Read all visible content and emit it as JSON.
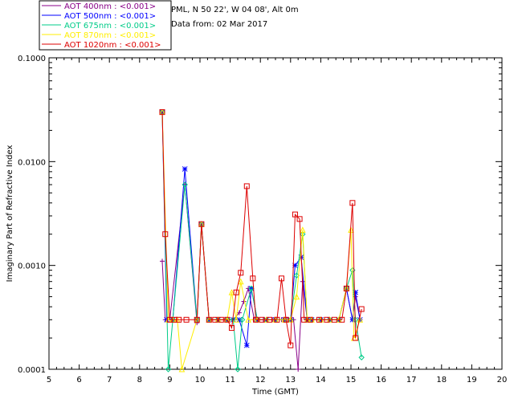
{
  "header": {
    "site": "PML, N 50 22', W 04 08', Alt 0m",
    "date_line": "Data from: 02 Mar 2017"
  },
  "colors": {
    "axis": "#000000",
    "series": [
      "#880088",
      "#0000ff",
      "#00cc88",
      "#ffee00",
      "#dd0000"
    ]
  },
  "chart_data": {
    "type": "line",
    "xlabel": "Time (GMT)",
    "ylabel": "Imaginary Part of Refractive Index",
    "xlim": [
      5,
      20
    ],
    "ylim": [
      0.0001,
      0.1
    ],
    "y_scale": "log",
    "x_ticks": [
      "5",
      "6",
      "7",
      "8",
      "9",
      "10",
      "11",
      "12",
      "13",
      "14",
      "15",
      "16",
      "17",
      "18",
      "19",
      "20"
    ],
    "y_ticks": [
      "0.0001",
      "0.0010",
      "0.0100",
      "0.1000"
    ],
    "y_tick_values": [
      0.0001,
      0.001,
      0.01,
      0.1
    ],
    "legend_position": "top-left, outside plot",
    "series": [
      {
        "name": "AOT  400nm : <0.001>",
        "marker": "plus",
        "points": [
          [
            8.75,
            0.0011
          ],
          [
            8.85,
            0.0003
          ],
          [
            9.0,
            0.0003
          ],
          [
            9.5,
            0.006
          ],
          [
            9.9,
            0.00028
          ],
          [
            10.05,
            0.0025
          ],
          [
            10.3,
            0.0003
          ],
          [
            10.6,
            0.0003
          ],
          [
            10.9,
            0.0003
          ],
          [
            11.1,
            0.0003
          ],
          [
            11.3,
            0.00035
          ],
          [
            11.45,
            0.00045
          ],
          [
            11.6,
            0.0006
          ],
          [
            11.8,
            0.0003
          ],
          [
            12.1,
            0.0003
          ],
          [
            12.4,
            0.0003
          ],
          [
            12.7,
            0.0003
          ],
          [
            12.9,
            0.0003
          ],
          [
            13.1,
            0.0003
          ],
          [
            13.25,
            0.0001
          ],
          [
            13.4,
            0.0007
          ],
          [
            13.55,
            0.0003
          ],
          [
            13.7,
            0.0003
          ],
          [
            14.0,
            0.0003
          ],
          [
            14.3,
            0.0003
          ],
          [
            14.6,
            0.0003
          ],
          [
            14.85,
            0.0006
          ],
          [
            15.05,
            0.0003
          ],
          [
            15.15,
            0.0005
          ],
          [
            15.3,
            0.0003
          ]
        ]
      },
      {
        "name": "AOT  500nm : <0.001>",
        "marker": "asterisk",
        "points": [
          [
            8.75,
            0.03
          ],
          [
            8.9,
            0.0003
          ],
          [
            9.1,
            0.0003
          ],
          [
            9.5,
            0.0085
          ],
          [
            9.9,
            0.0003
          ],
          [
            10.05,
            0.0025
          ],
          [
            10.3,
            0.0003
          ],
          [
            10.6,
            0.0003
          ],
          [
            10.9,
            0.0003
          ],
          [
            11.1,
            0.0003
          ],
          [
            11.3,
            0.0003
          ],
          [
            11.55,
            0.00017
          ],
          [
            11.7,
            0.0006
          ],
          [
            11.9,
            0.0003
          ],
          [
            12.2,
            0.0003
          ],
          [
            12.5,
            0.0003
          ],
          [
            12.8,
            0.0003
          ],
          [
            13.0,
            0.0003
          ],
          [
            13.15,
            0.001
          ],
          [
            13.35,
            0.0012
          ],
          [
            13.55,
            0.0003
          ],
          [
            13.7,
            0.0003
          ],
          [
            14.0,
            0.0003
          ],
          [
            14.3,
            0.0003
          ],
          [
            14.6,
            0.0003
          ],
          [
            14.85,
            0.0006
          ],
          [
            15.05,
            0.0003
          ],
          [
            15.15,
            0.00055
          ],
          [
            15.3,
            0.0003
          ]
        ]
      },
      {
        "name": "AOT  675nm : <0.001>",
        "marker": "diamond",
        "points": [
          [
            8.75,
            0.03
          ],
          [
            8.95,
            0.0001
          ],
          [
            9.1,
            0.0003
          ],
          [
            9.5,
            0.006
          ],
          [
            9.9,
            0.0003
          ],
          [
            10.05,
            0.0025
          ],
          [
            10.3,
            0.0003
          ],
          [
            10.6,
            0.0003
          ],
          [
            10.9,
            0.0003
          ],
          [
            11.1,
            0.0003
          ],
          [
            11.25,
            0.0001
          ],
          [
            11.4,
            0.0003
          ],
          [
            11.7,
            0.0006
          ],
          [
            11.9,
            0.0003
          ],
          [
            12.2,
            0.0003
          ],
          [
            12.5,
            0.0003
          ],
          [
            12.8,
            0.0003
          ],
          [
            13.0,
            0.0003
          ],
          [
            13.2,
            0.0008
          ],
          [
            13.4,
            0.002
          ],
          [
            13.55,
            0.0003
          ],
          [
            13.7,
            0.0003
          ],
          [
            14.0,
            0.0003
          ],
          [
            14.3,
            0.0003
          ],
          [
            14.6,
            0.0003
          ],
          [
            14.85,
            0.0006
          ],
          [
            15.05,
            0.0009
          ],
          [
            15.15,
            0.0003
          ],
          [
            15.35,
            0.00013
          ]
        ]
      },
      {
        "name": "AOT  870nm : <0.001>",
        "marker": "triangle",
        "points": [
          [
            8.75,
            0.03
          ],
          [
            8.95,
            0.0003
          ],
          [
            9.1,
            0.0003
          ],
          [
            9.25,
            0.0003
          ],
          [
            9.4,
            0.0001
          ],
          [
            9.9,
            0.0003
          ],
          [
            10.05,
            0.0025
          ],
          [
            10.3,
            0.0003
          ],
          [
            10.6,
            0.0003
          ],
          [
            10.9,
            0.0003
          ],
          [
            11.05,
            0.00055
          ],
          [
            11.2,
            0.0003
          ],
          [
            11.35,
            0.0007
          ],
          [
            11.6,
            0.0003
          ],
          [
            11.9,
            0.0003
          ],
          [
            12.2,
            0.0003
          ],
          [
            12.5,
            0.0003
          ],
          [
            12.8,
            0.0003
          ],
          [
            13.0,
            0.0003
          ],
          [
            13.2,
            0.0005
          ],
          [
            13.4,
            0.0022
          ],
          [
            13.55,
            0.0003
          ],
          [
            13.7,
            0.0003
          ],
          [
            14.0,
            0.0003
          ],
          [
            14.3,
            0.0003
          ],
          [
            14.6,
            0.0003
          ],
          [
            14.85,
            0.0006
          ],
          [
            15.0,
            0.0022
          ],
          [
            15.1,
            0.0002
          ],
          [
            15.3,
            0.0003
          ]
        ]
      },
      {
        "name": "AOT 1020nm : <0.001>",
        "marker": "square",
        "points": [
          [
            8.75,
            0.03
          ],
          [
            8.85,
            0.002
          ],
          [
            9.0,
            0.0003
          ],
          [
            9.15,
            0.0003
          ],
          [
            9.3,
            0.0003
          ],
          [
            9.55,
            0.0003
          ],
          [
            9.9,
            0.0003
          ],
          [
            10.05,
            0.0025
          ],
          [
            10.3,
            0.0003
          ],
          [
            10.5,
            0.0003
          ],
          [
            10.7,
            0.0003
          ],
          [
            10.9,
            0.0003
          ],
          [
            11.05,
            0.00025
          ],
          [
            11.2,
            0.00055
          ],
          [
            11.35,
            0.00085
          ],
          [
            11.55,
            0.0058
          ],
          [
            11.75,
            0.00075
          ],
          [
            11.85,
            0.0003
          ],
          [
            12.05,
            0.0003
          ],
          [
            12.3,
            0.0003
          ],
          [
            12.55,
            0.0003
          ],
          [
            12.7,
            0.00075
          ],
          [
            12.85,
            0.0003
          ],
          [
            13.0,
            0.00017
          ],
          [
            13.15,
            0.0031
          ],
          [
            13.3,
            0.0028
          ],
          [
            13.45,
            0.0003
          ],
          [
            13.65,
            0.0003
          ],
          [
            13.95,
            0.0003
          ],
          [
            14.2,
            0.0003
          ],
          [
            14.45,
            0.0003
          ],
          [
            14.7,
            0.0003
          ],
          [
            14.85,
            0.0006
          ],
          [
            15.05,
            0.004
          ],
          [
            15.15,
            0.0002
          ],
          [
            15.35,
            0.00038
          ]
        ]
      }
    ]
  }
}
